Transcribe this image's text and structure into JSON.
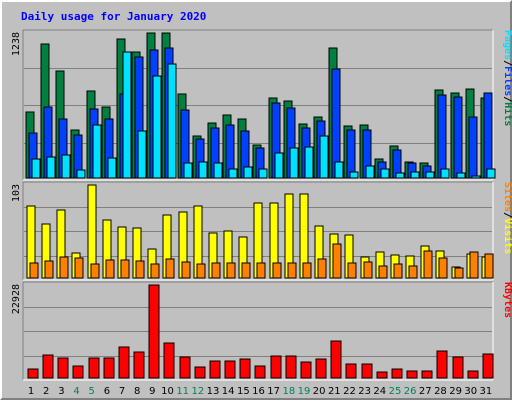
{
  "chart_data": {
    "type": "bar",
    "title": "Daily usage for January 2020",
    "categories": [
      "1",
      "2",
      "3",
      "4",
      "5",
      "6",
      "7",
      "8",
      "9",
      "10",
      "11",
      "12",
      "13",
      "14",
      "15",
      "16",
      "17",
      "18",
      "19",
      "20",
      "21",
      "22",
      "23",
      "24",
      "25",
      "26",
      "27",
      "28",
      "29",
      "30",
      "31"
    ],
    "weekend_days": [
      4,
      5,
      11,
      12,
      18,
      19,
      25,
      26
    ],
    "colors": {
      "hits": "#008040",
      "files": "#0040ff",
      "pages": "#00e0ff",
      "visits": "#ffff00",
      "sites": "#ff8000",
      "kbytes": "#ff0000",
      "weekday_label": "#000000",
      "weekend_label": "#00805c",
      "title": "#0000ff"
    },
    "panels": [
      {
        "id": "hits-files-pages",
        "max_label": "1238",
        "ylim": [
          0,
          1238
        ],
        "legend": [
          {
            "text": "Pages",
            "color": "#00e0ff"
          },
          {
            "text": "/",
            "color": "#000000"
          },
          {
            "text": "Files",
            "color": "#0040ff"
          },
          {
            "text": "/",
            "color": "#000000"
          },
          {
            "text": "Hits",
            "color": "#008040"
          }
        ],
        "series": [
          {
            "name": "Hits",
            "values": [
              560,
              1142,
              912,
              412,
              742,
              610,
              1188,
              1074,
              1238,
              1238,
              720,
              360,
              470,
              540,
              500,
              280,
              680,
              660,
              460,
              520,
              1114,
              442,
              450,
              165,
              275,
              140,
              130,
              750,
              725,
              760,
              685
            ]
          },
          {
            "name": "Files",
            "values": [
              382,
              603,
              500,
              370,
              585,
              500,
              720,
              1036,
              1094,
              1110,
              580,
              330,
              430,
              450,
              405,
              255,
              640,
              595,
              430,
              485,
              930,
              410,
              410,
              135,
              240,
              130,
              105,
              710,
              690,
              520,
              725
            ]
          },
          {
            "name": "Pages",
            "values": [
              160,
              180,
              195,
              70,
              455,
              175,
              1080,
              400,
              870,
              975,
              130,
              135,
              125,
              80,
              90,
              75,
              210,
              255,
              265,
              355,
              140,
              50,
              100,
              75,
              40,
              50,
              55,
              80,
              40,
              20,
              75
            ]
          }
        ]
      },
      {
        "id": "visits-sites",
        "max_label": "103",
        "ylim": [
          0,
          103
        ],
        "legend": [
          {
            "text": "Sites",
            "color": "#ff8000"
          },
          {
            "text": "/",
            "color": "#000000"
          },
          {
            "text": "Visits",
            "color": "#ffff00"
          }
        ],
        "series": [
          {
            "name": "Visits",
            "values": [
              80,
              60,
              75,
              28,
              103,
              64,
              56,
              55,
              32,
              70,
              73,
              80,
              50,
              52,
              45,
              83,
              83,
              93,
              93,
              58,
              49,
              48,
              23,
              29,
              25,
              24,
              35,
              30,
              12,
              27,
              23
            ]
          },
          {
            "name": "Sites",
            "values": [
              17,
              19,
              23,
              22,
              16,
              20,
              20,
              19,
              16,
              21,
              18,
              16,
              17,
              17,
              17,
              17,
              17,
              17,
              17,
              21,
              38,
              17,
              18,
              13,
              16,
              13,
              30,
              22,
              11,
              29,
              27
            ]
          }
        ]
      },
      {
        "id": "kbytes",
        "max_label": "22928",
        "ylim": [
          0,
          22928
        ],
        "legend": [
          {
            "text": "KBytes",
            "color": "#ff0000"
          }
        ],
        "series": [
          {
            "name": "KBytes",
            "values": [
              2300,
              5600,
              4900,
              2900,
              4900,
              4900,
              7700,
              6400,
              22928,
              8700,
              5200,
              2800,
              4200,
              4200,
              4600,
              2900,
              5500,
              5500,
              4000,
              4600,
              9200,
              3500,
              3500,
              1600,
              2300,
              1800,
              1700,
              6600,
              5200,
              1800,
              5800
            ]
          }
        ]
      }
    ]
  }
}
